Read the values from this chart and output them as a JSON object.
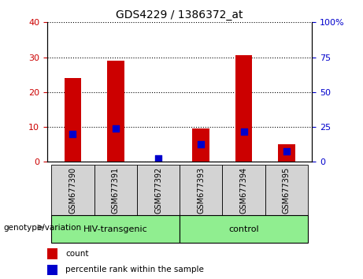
{
  "title": "GDS4229 / 1386372_at",
  "samples": [
    "GSM677390",
    "GSM677391",
    "GSM677392",
    "GSM677393",
    "GSM677394",
    "GSM677395"
  ],
  "counts": [
    24.0,
    29.0,
    0.0,
    9.5,
    30.5,
    5.0
  ],
  "percentile_ranks": [
    20.0,
    24.0,
    2.5,
    12.5,
    21.5,
    7.5
  ],
  "left_ylim": [
    0,
    40
  ],
  "right_ylim": [
    0,
    100
  ],
  "left_yticks": [
    0,
    10,
    20,
    30,
    40
  ],
  "right_yticks": [
    0,
    25,
    50,
    75,
    100
  ],
  "right_yticklabels": [
    "0",
    "25",
    "50",
    "75",
    "100%"
  ],
  "left_color": "#cc0000",
  "right_color": "#0000cc",
  "bar_color": "#cc0000",
  "dot_color": "#0000cc",
  "bar_width": 0.4,
  "dot_size": 30,
  "legend_count_label": "count",
  "legend_pct_label": "percentile rank within the sample",
  "group_label": "genotype/variation",
  "tick_area_color": "#d3d3d3",
  "group_green": "#90EE90",
  "group_info": [
    {
      "label": "HIV-transgenic",
      "start": 0,
      "end": 2
    },
    {
      "label": "control",
      "start": 3,
      "end": 5
    }
  ]
}
